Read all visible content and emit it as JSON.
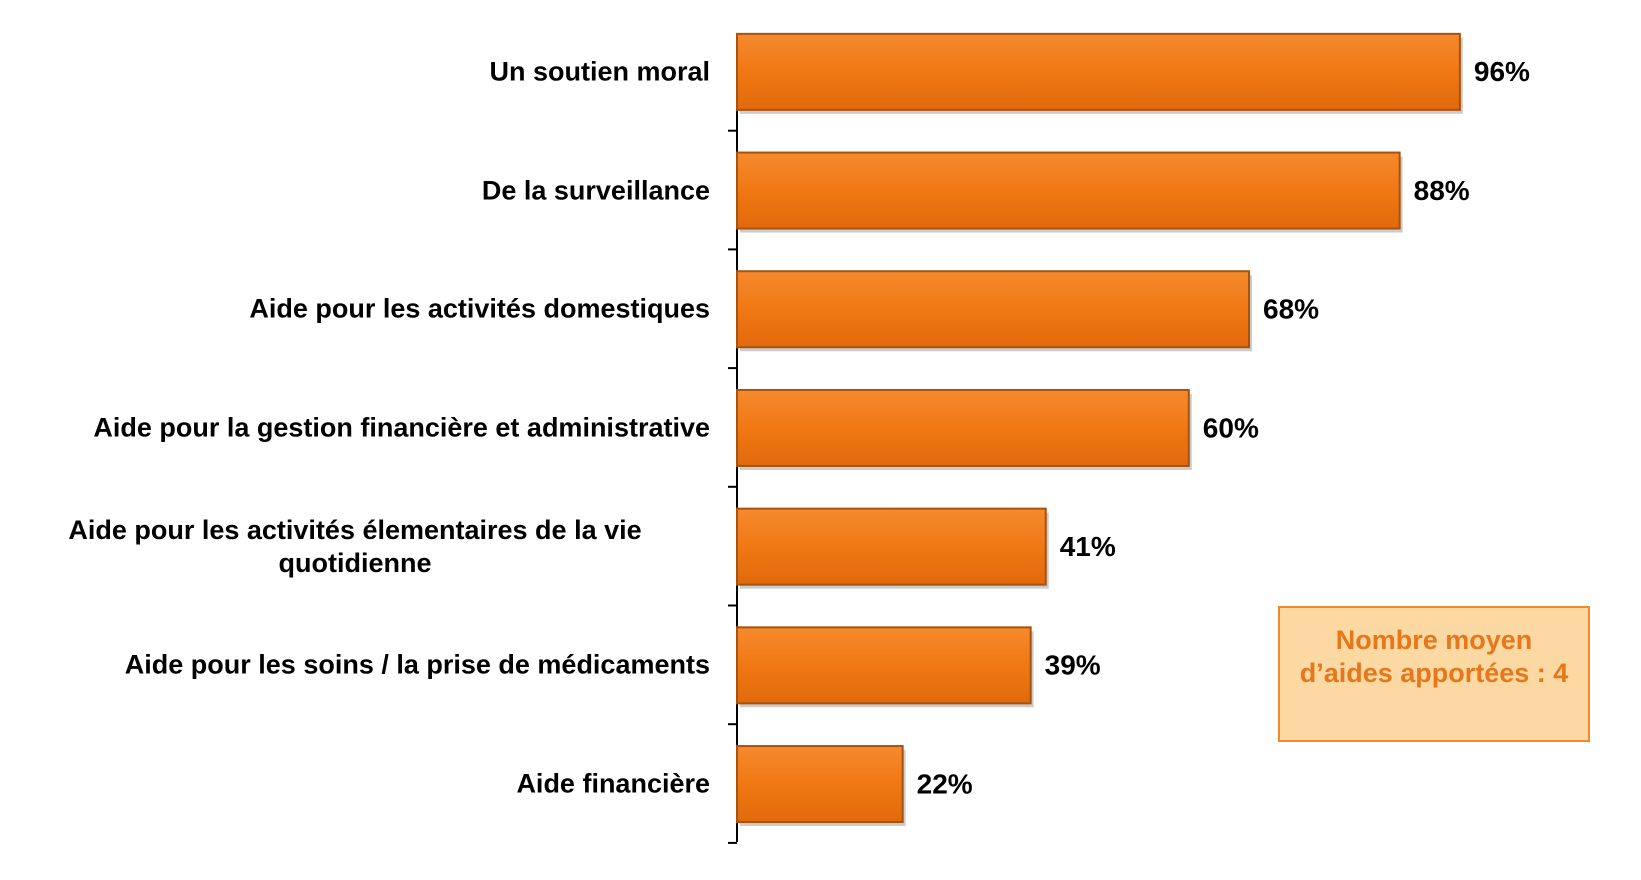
{
  "chart_data": {
    "type": "bar",
    "orientation": "horizontal",
    "categories": [
      "Un soutien moral",
      "De la surveillance",
      "Aide pour les activités domestiques",
      "Aide pour la gestion financière et administrative",
      "Aide pour les activités élementaires de la vie quotidienne",
      "Aide pour les soins / la prise de médicaments",
      "Aide financière"
    ],
    "values": [
      96,
      88,
      68,
      60,
      41,
      39,
      22
    ],
    "value_labels": [
      "96%",
      "88%",
      "68%",
      "60%",
      "41%",
      "39%",
      "22%"
    ],
    "color": "#f07814",
    "xlim": [
      0,
      100
    ],
    "annotation": "Nombre moyen d’aides apportées : 4"
  }
}
